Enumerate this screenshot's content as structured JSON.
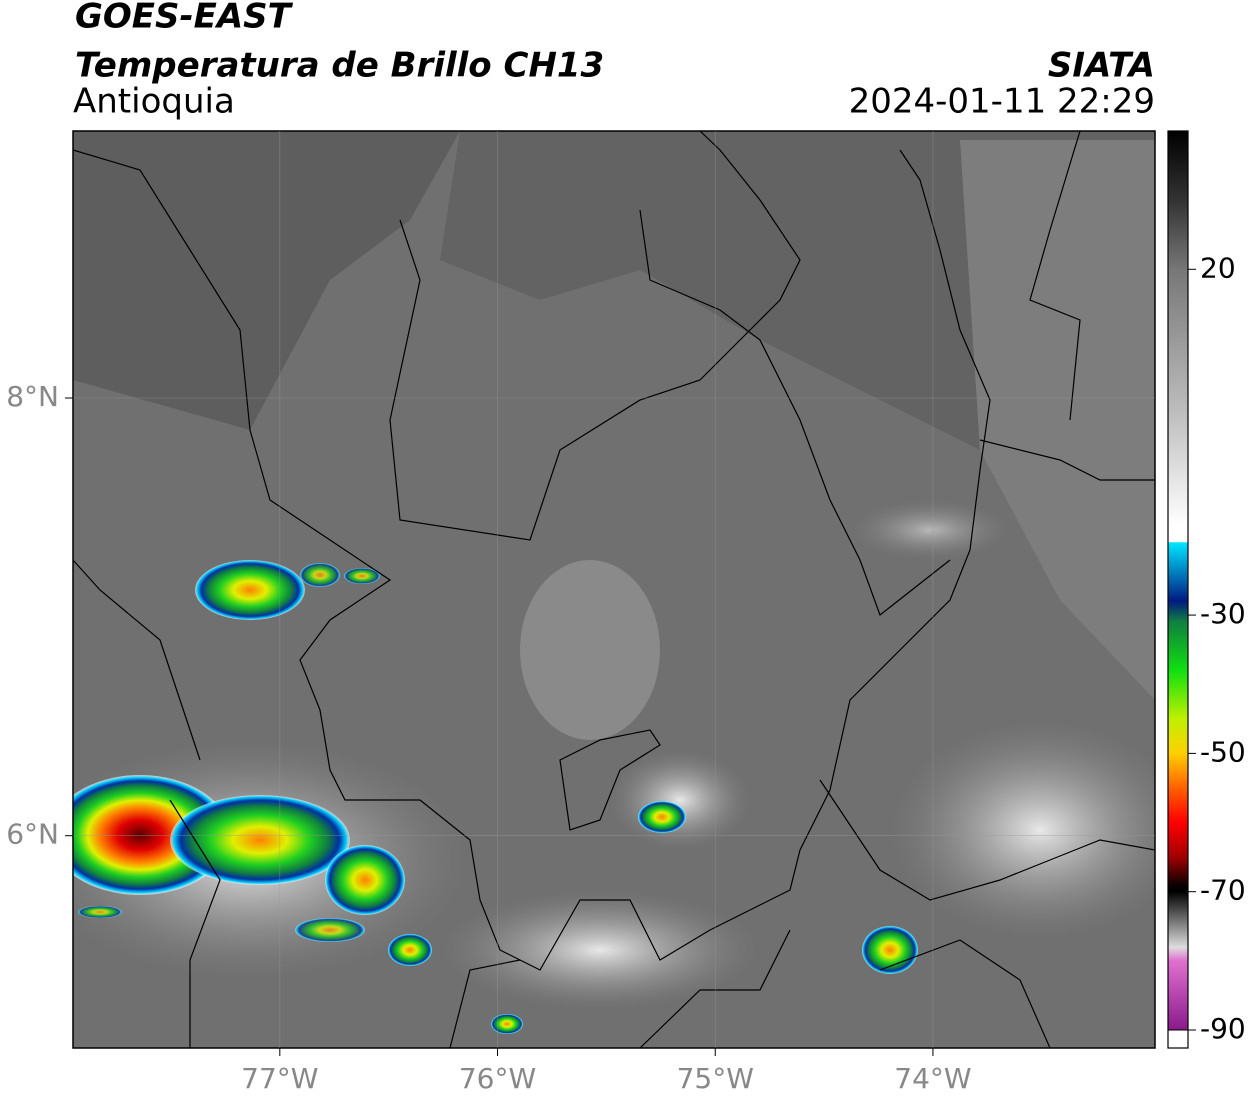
{
  "header": {
    "title": "GOES-EAST",
    "subtitle": "Temperatura de Brillo CH13",
    "region": "Antioquia",
    "source": "SIATA",
    "timestamp": "2024-01-11 22:29"
  },
  "map": {
    "xlim": [
      -77.95,
      -72.98
    ],
    "ylim": [
      5.03,
      9.22
    ],
    "xticks": [
      {
        "value": -77,
        "label": "77°W"
      },
      {
        "value": -76,
        "label": "76°W"
      },
      {
        "value": -75,
        "label": "75°W"
      },
      {
        "value": -74,
        "label": "74°W"
      }
    ],
    "yticks": [
      {
        "value": 8,
        "label": "8°N"
      },
      {
        "value": 6,
        "label": "6°N"
      }
    ]
  },
  "colorbar": {
    "lim": [
      -90,
      40
    ],
    "ticks": [
      20,
      -30,
      -50,
      -70,
      -90
    ]
  }
}
